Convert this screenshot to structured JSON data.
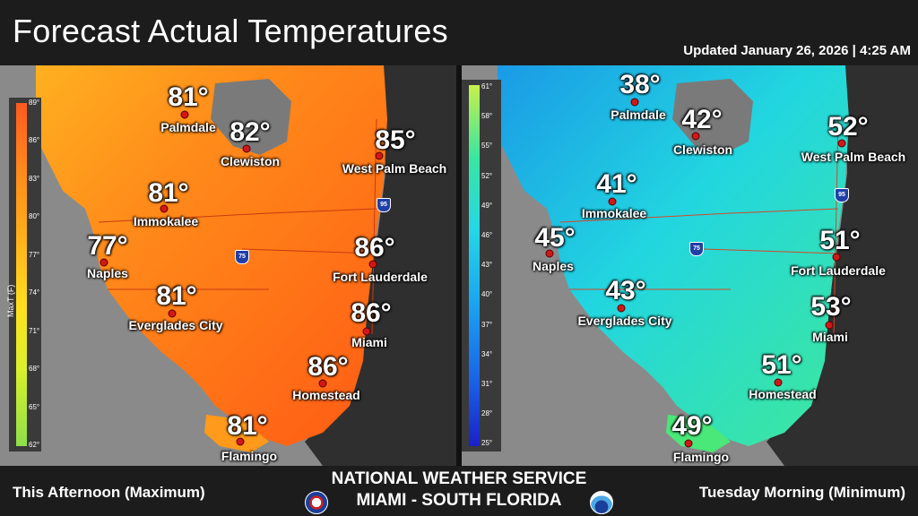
{
  "header": {
    "title": "Forecast Actual Temperatures",
    "updated": "Updated  January 26, 2026 | 4:25 AM"
  },
  "colors": {
    "background": "#1c1c1c",
    "land_gray": "#8a8a8a",
    "ocean_dark": "#3a3a3a",
    "warm_fill": "#ff7a1a",
    "cool_fill": "#2ee0d8",
    "city_dot": "#d01818"
  },
  "left_map": {
    "legend": {
      "label": "MaxT (F)",
      "ticks": [
        "89°",
        "86°",
        "83°",
        "80°",
        "77°",
        "74°",
        "71°",
        "68°",
        "65°",
        "62°"
      ]
    },
    "highway_labels": [
      "75",
      "95"
    ],
    "cities": [
      {
        "name": "Palmdale",
        "temp": "81°"
      },
      {
        "name": "Clewiston",
        "temp": "82°"
      },
      {
        "name": "West Palm Beach",
        "temp": "85°"
      },
      {
        "name": "Immokalee",
        "temp": "81°"
      },
      {
        "name": "Naples",
        "temp": "77°"
      },
      {
        "name": "Fort Lauderdale",
        "temp": "86°"
      },
      {
        "name": "Everglades City",
        "temp": "81°"
      },
      {
        "name": "Miami",
        "temp": "86°"
      },
      {
        "name": "Homestead",
        "temp": "86°"
      },
      {
        "name": "Flamingo",
        "temp": "81°"
      }
    ]
  },
  "right_map": {
    "legend": {
      "ticks": [
        "61°",
        "58°",
        "55°",
        "52°",
        "49°",
        "46°",
        "43°",
        "40°",
        "37°",
        "34°",
        "31°",
        "28°",
        "25°"
      ]
    },
    "highway_labels": [
      "75",
      "95"
    ],
    "cities": [
      {
        "name": "Palmdale",
        "temp": "38°"
      },
      {
        "name": "Clewiston",
        "temp": "42°"
      },
      {
        "name": "West Palm Beach",
        "temp": "52°"
      },
      {
        "name": "Immokalee",
        "temp": "41°"
      },
      {
        "name": "Naples",
        "temp": "45°"
      },
      {
        "name": "Fort Lauderdale",
        "temp": "51°"
      },
      {
        "name": "Everglades City",
        "temp": "43°"
      },
      {
        "name": "Miami",
        "temp": "53°"
      },
      {
        "name": "Homestead",
        "temp": "51°"
      },
      {
        "name": "Flamingo",
        "temp": "49°"
      }
    ]
  },
  "footer": {
    "left": "This Afternoon (Maximum)",
    "right": "Tuesday Morning (Minimum)",
    "office_name": "NATIONAL WEATHER SERVICE",
    "office_location": "MIAMI - SOUTH FLORIDA"
  }
}
